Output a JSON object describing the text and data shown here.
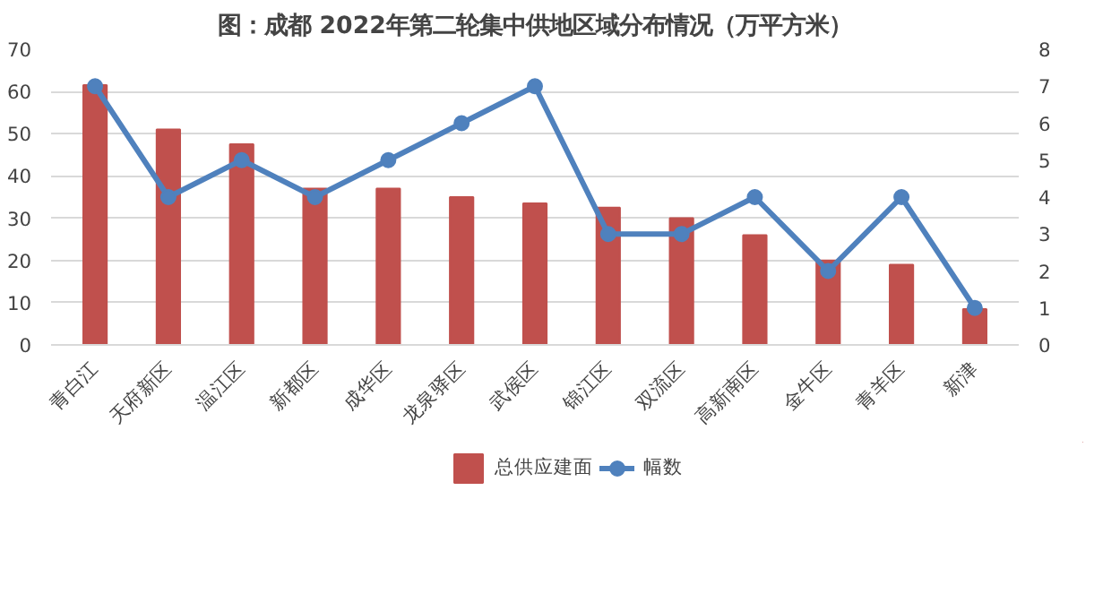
{
  "chart_data": {
    "type": "bar",
    "title": "图：成都 2022年第二轮集中供地区域分布情况（万平方米）",
    "categories": [
      "青白江",
      "天府新区",
      "温江区",
      "新都区",
      "成华区",
      "龙泉驿区",
      "武侯区",
      "锦江区",
      "双流区",
      "高新南区",
      "金牛区",
      "青羊区",
      "新津"
    ],
    "series": [
      {
        "name": "总供应建面",
        "color": "#c0504d",
        "values": [
          61.5,
          51,
          47.5,
          37,
          37,
          35,
          33.5,
          32.5,
          30,
          26,
          20,
          19,
          8.5
        ]
      },
      {
        "name": "幅数",
        "type": "line",
        "axis": "y2",
        "color": "#4f81bd",
        "marker": "circle",
        "values": [
          7,
          4,
          5,
          4,
          5,
          6,
          7,
          3,
          3,
          4,
          2,
          4,
          1
        ]
      }
    ],
    "ylim": [
      0,
      70
    ],
    "yticks": [
      0,
      10,
      20,
      30,
      40,
      50,
      60,
      70
    ],
    "y2lim": [
      0,
      8
    ],
    "y2ticks": [
      0,
      1,
      2,
      3,
      4,
      5,
      6,
      7,
      8
    ],
    "grid": "y",
    "legend": "bottom"
  }
}
